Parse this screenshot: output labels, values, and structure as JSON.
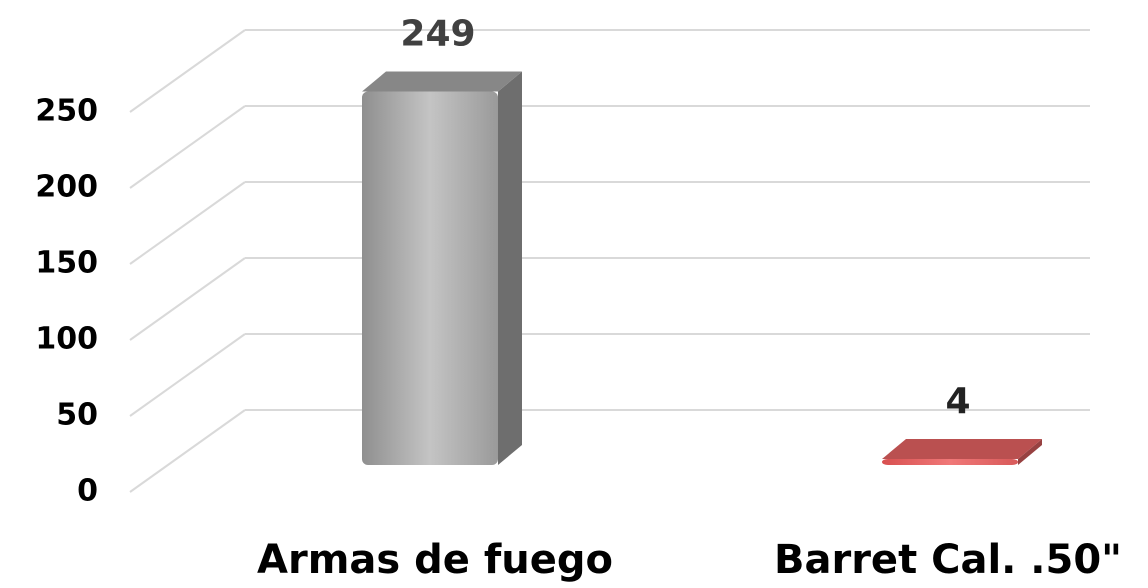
{
  "chart_data": {
    "type": "bar3d",
    "categories": [
      "Armas de fuego",
      "Barret Cal. .50\""
    ],
    "series": [
      {
        "values": [
          249,
          4
        ],
        "colors": [
          "#a9a9a9",
          "#e86464"
        ]
      }
    ],
    "ylim": [
      0,
      250
    ],
    "yticks": [
      0,
      50,
      100,
      150,
      200,
      250
    ],
    "grid": true
  }
}
